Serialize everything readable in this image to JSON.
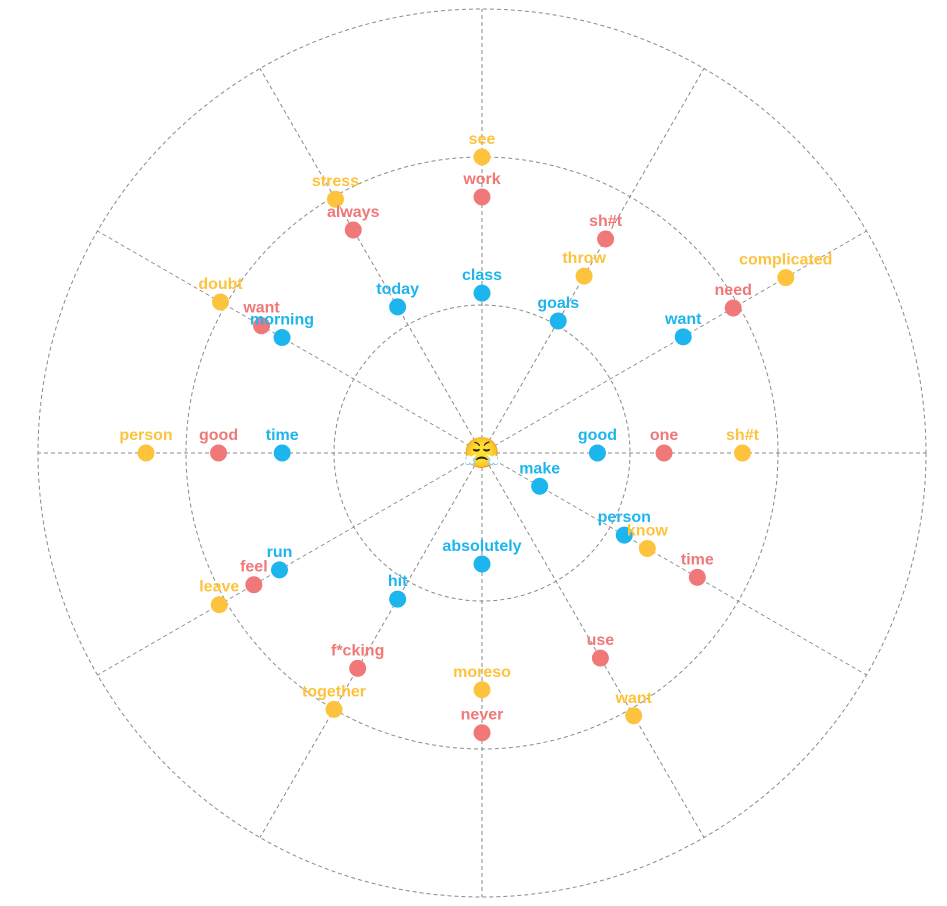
{
  "center": {
    "emoji": "😤",
    "icon": "frustrated-face-emoji"
  },
  "colors": {
    "blue": "#1db5ee",
    "red": "#f07878",
    "yellow": "#fec33c",
    "grid": "#8a8a8a"
  },
  "spokes": 12,
  "terms": [
    {
      "label": "see",
      "color": "yellow",
      "ring": 2.0,
      "spoke": 0
    },
    {
      "label": "work",
      "color": "red",
      "ring": 1.73,
      "spoke": 0
    },
    {
      "label": "class",
      "color": "blue",
      "ring": 1.08,
      "spoke": 0
    },
    {
      "label": "sh#t",
      "color": "red",
      "ring": 1.67,
      "spoke": 1
    },
    {
      "label": "throw",
      "color": "yellow",
      "ring": 1.38,
      "spoke": 1
    },
    {
      "label": "goals",
      "color": "blue",
      "ring": 1.03,
      "spoke": 1
    },
    {
      "label": "complicated",
      "color": "yellow",
      "ring": 2.37,
      "spoke": 2
    },
    {
      "label": "need",
      "color": "red",
      "ring": 1.96,
      "spoke": 2
    },
    {
      "label": "want",
      "color": "blue",
      "ring": 1.57,
      "spoke": 2
    },
    {
      "label": "sh#t",
      "color": "yellow",
      "ring": 1.76,
      "spoke": 3
    },
    {
      "label": "one",
      "color": "red",
      "ring": 1.23,
      "spoke": 3
    },
    {
      "label": "good",
      "color": "blue",
      "ring": 0.78,
      "spoke": 3
    },
    {
      "label": "time",
      "color": "red",
      "ring": 1.68,
      "spoke": 4
    },
    {
      "label": "know",
      "color": "yellow",
      "ring": 1.29,
      "spoke": 4
    },
    {
      "label": "person",
      "color": "blue",
      "ring": 1.11,
      "spoke": 4
    },
    {
      "label": "make",
      "color": "blue",
      "ring": 0.45,
      "spoke": 4
    },
    {
      "label": "want",
      "color": "yellow",
      "ring": 2.05,
      "spoke": 5
    },
    {
      "label": "use",
      "color": "red",
      "ring": 1.6,
      "spoke": 5
    },
    {
      "label": "never",
      "color": "red",
      "ring": 1.89,
      "spoke": 6
    },
    {
      "label": "moreso",
      "color": "yellow",
      "ring": 1.6,
      "spoke": 6
    },
    {
      "label": "absolutely",
      "color": "blue",
      "ring": 0.75,
      "spoke": 6
    },
    {
      "label": "together",
      "color": "yellow",
      "ring": 2.0,
      "spoke": 7
    },
    {
      "label": "f*cking",
      "color": "red",
      "ring": 1.68,
      "spoke": 7
    },
    {
      "label": "hit",
      "color": "blue",
      "ring": 1.14,
      "spoke": 7
    },
    {
      "label": "leave",
      "color": "yellow",
      "ring": 2.05,
      "spoke": 8
    },
    {
      "label": "feel",
      "color": "red",
      "ring": 1.78,
      "spoke": 8
    },
    {
      "label": "run",
      "color": "blue",
      "ring": 1.58,
      "spoke": 8
    },
    {
      "label": "person",
      "color": "yellow",
      "ring": 2.27,
      "spoke": 9
    },
    {
      "label": "good",
      "color": "red",
      "ring": 1.78,
      "spoke": 9
    },
    {
      "label": "time",
      "color": "blue",
      "ring": 1.35,
      "spoke": 9
    },
    {
      "label": "doubt",
      "color": "yellow",
      "ring": 2.04,
      "spoke": 10
    },
    {
      "label": "want",
      "color": "red",
      "ring": 1.72,
      "spoke": 10
    },
    {
      "label": "morning",
      "color": "blue",
      "ring": 1.56,
      "spoke": 10
    },
    {
      "label": "stress",
      "color": "yellow",
      "ring": 1.98,
      "spoke": 11
    },
    {
      "label": "always",
      "color": "red",
      "ring": 1.74,
      "spoke": 11
    },
    {
      "label": "today",
      "color": "blue",
      "ring": 1.14,
      "spoke": 11
    }
  ]
}
